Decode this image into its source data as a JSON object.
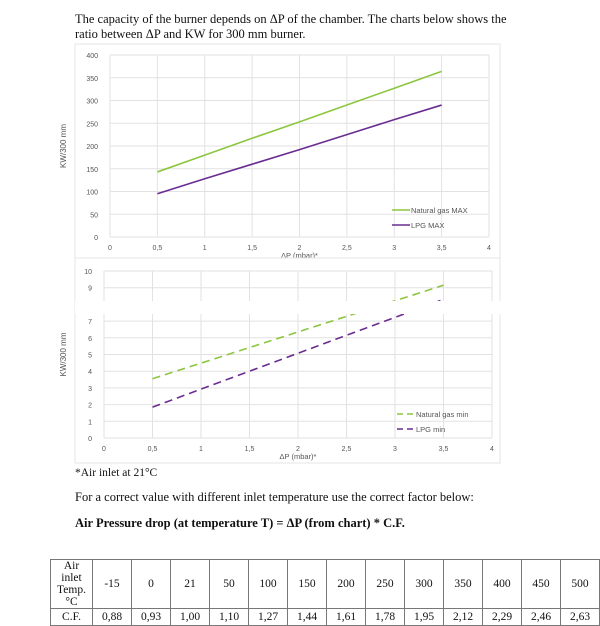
{
  "intro": "The capacity of the burner depends on ΔP of the chamber. The charts below shows the ratio between ΔP and KW for 300 mm burner.",
  "footnote": "*Air inlet at 21°C",
  "note": "For a correct value with different inlet temperature use the correct factor below:",
  "formula": "Air Pressure drop (at temperature T) = ΔP (from chart) * C.F.",
  "chart_data": [
    {
      "type": "line",
      "xlabel": "ΔP (mbar)*",
      "ylabel": "KW/300 mm",
      "xlim": [
        0,
        4
      ],
      "ylim": [
        0,
        400
      ],
      "xticks": [
        "0",
        "0,5",
        "1",
        "1,5",
        "2",
        "2,5",
        "3",
        "3,5",
        "4"
      ],
      "yticks": [
        "0",
        "50",
        "100",
        "150",
        "200",
        "250",
        "300",
        "350",
        "400"
      ],
      "grid": true,
      "legend": "bottom-right",
      "series": [
        {
          "name": "Natural gas MAX",
          "color": "#8cc63f",
          "dash": false,
          "x": [
            0.5,
            1,
            1.5,
            2,
            2.5,
            3,
            3.5
          ],
          "y": [
            143,
            180,
            217,
            253,
            290,
            327,
            364
          ]
        },
        {
          "name": "LPG MAX",
          "color": "#6a2c91",
          "dash": false,
          "x": [
            0.5,
            1,
            1.5,
            2,
            2.5,
            3,
            3.5
          ],
          "y": [
            95,
            128,
            160,
            192,
            225,
            258,
            290
          ]
        }
      ]
    },
    {
      "type": "line",
      "xlabel": "ΔP (mbar)*",
      "ylabel": "KW/300 mm",
      "xlim": [
        0,
        4
      ],
      "ylim": [
        0,
        10
      ],
      "xticks": [
        "0",
        "0,5",
        "1",
        "1,5",
        "2",
        "2,5",
        "3",
        "3,5",
        "4"
      ],
      "yticks": [
        "0",
        "1",
        "2",
        "3",
        "4",
        "5",
        "6",
        "7",
        "9",
        "10"
      ],
      "grid": true,
      "legend": "bottom-right",
      "series": [
        {
          "name": "Natural gas min",
          "color": "#8cc63f",
          "dash": true,
          "x": [
            0.5,
            3.5
          ],
          "y": [
            3.55,
            9.15
          ]
        },
        {
          "name": "LPG min",
          "color": "#6a2c91",
          "dash": true,
          "x": [
            0.5,
            3.5
          ],
          "y": [
            1.85,
            8.3
          ]
        }
      ]
    }
  ],
  "table": {
    "header": "Air inlet Temp. °C",
    "row_label": "C.F.",
    "temps": [
      "-15",
      "0",
      "21",
      "50",
      "100",
      "150",
      "200",
      "250",
      "300",
      "350",
      "400",
      "450",
      "500"
    ],
    "factors": [
      "0,88",
      "0,93",
      "1,00",
      "1,10",
      "1,27",
      "1,44",
      "1,61",
      "1,78",
      "1,95",
      "2,12",
      "2,29",
      "2,46",
      "2,63"
    ]
  }
}
